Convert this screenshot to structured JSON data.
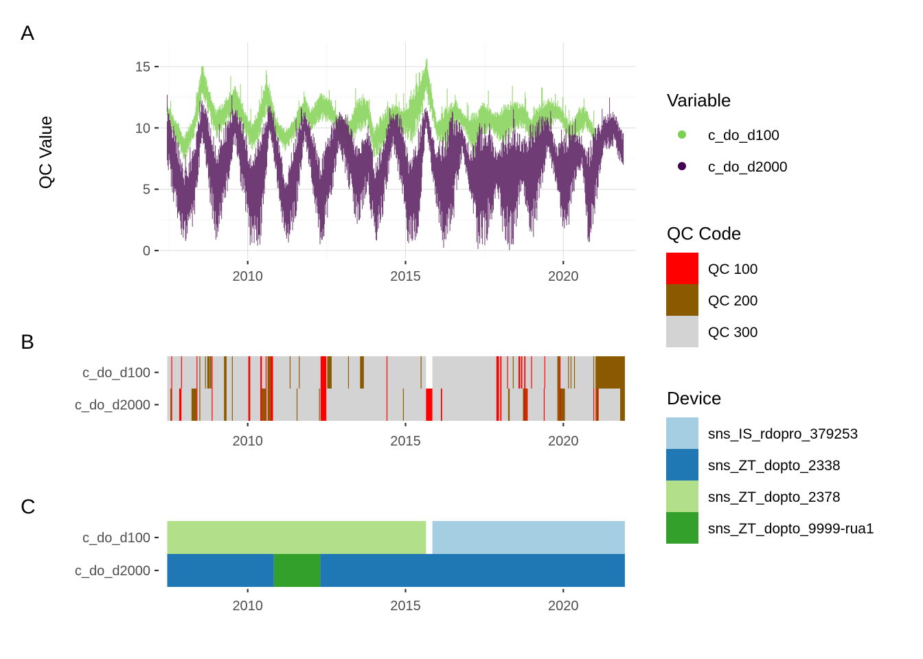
{
  "chart_data": [
    {
      "panel": "A",
      "type": "scatter",
      "title": "",
      "xlabel": "",
      "ylabel": "QC Value",
      "xlim": [
        2007.2,
        2022.3
      ],
      "ylim": [
        -0.3,
        16.2
      ],
      "x_ticks": [
        2010,
        2015,
        2020
      ],
      "x_tick_labels": [
        "2010",
        "2015",
        "2020"
      ],
      "y_ticks": [
        0,
        5,
        10,
        15
      ],
      "y_tick_labels": [
        "0",
        "5",
        "10",
        "15"
      ],
      "grid": true,
      "legend_placement": "right",
      "legend_title": "Variable",
      "series": [
        {
          "name": "c_do_d100",
          "color": "#95d86e",
          "note": "dense daily points; approximate seasonal upper/lower envelope",
          "x": [
            2007.45,
            2007.7,
            2008.0,
            2008.3,
            2008.55,
            2008.7,
            2009.0,
            2009.3,
            2009.6,
            2009.9,
            2010.15,
            2010.4,
            2010.6,
            2010.9,
            2011.2,
            2011.5,
            2011.8,
            2012.0,
            2012.3,
            2012.6,
            2012.9,
            2013.2,
            2013.5,
            2013.8,
            2014.0,
            2014.3,
            2014.6,
            2014.9,
            2015.2,
            2015.5,
            2015.65,
            2016.0,
            2016.3,
            2016.6,
            2016.9,
            2017.2,
            2017.5,
            2017.8,
            2018.1,
            2018.4,
            2018.7,
            2019.0,
            2019.3,
            2019.6,
            2019.9,
            2020.2,
            2020.5,
            2020.7,
            2021.0
          ],
          "y_high": [
            12.0,
            10.8,
            9.5,
            11.0,
            15.5,
            14.0,
            11.5,
            12.5,
            13.5,
            11.5,
            10.5,
            12.0,
            14.5,
            11.0,
            9.8,
            11.0,
            12.5,
            11.5,
            13.0,
            12.5,
            11.0,
            10.8,
            12.5,
            12.5,
            10.0,
            11.5,
            12.0,
            11.5,
            13.0,
            14.5,
            15.8,
            10.5,
            12.0,
            12.3,
            11.0,
            11.3,
            12.3,
            11.2,
            12.0,
            12.3,
            12.0,
            11.0,
            12.2,
            12.5,
            11.8,
            10.5,
            11.6,
            11.7,
            10.0
          ],
          "y_low": [
            10.8,
            9.0,
            7.2,
            9.0,
            12.0,
            11.5,
            9.0,
            10.0,
            11.0,
            9.5,
            7.8,
            9.5,
            11.0,
            9.0,
            8.0,
            9.2,
            10.5,
            9.8,
            10.5,
            10.5,
            9.2,
            8.0,
            9.5,
            10.0,
            7.5,
            8.0,
            10.0,
            9.5,
            8.5,
            10.5,
            12.5,
            9.0,
            8.0,
            10.5,
            9.5,
            7.5,
            9.5,
            9.5,
            8.0,
            9.5,
            10.0,
            8.5,
            9.0,
            10.0,
            10.5,
            8.5,
            9.0,
            10.0,
            8.5
          ]
        },
        {
          "name": "c_do_d2000",
          "color": "#440154",
          "rendered_color": "#68316f",
          "note": "dense daily points; approximate seasonal upper/lower envelope",
          "x": [
            2007.45,
            2007.7,
            2008.0,
            2008.3,
            2008.55,
            2008.8,
            2009.0,
            2009.3,
            2009.6,
            2009.9,
            2010.1,
            2010.4,
            2010.7,
            2010.95,
            2011.2,
            2011.5,
            2011.8,
            2012.05,
            2012.3,
            2012.6,
            2012.9,
            2013.2,
            2013.5,
            2013.8,
            2014.05,
            2014.3,
            2014.6,
            2014.9,
            2015.1,
            2015.4,
            2015.65,
            2015.95,
            2016.2,
            2016.5,
            2016.8,
            2017.05,
            2017.3,
            2017.6,
            2017.9,
            2018.15,
            2018.4,
            2018.7,
            2019.0,
            2019.2,
            2019.5,
            2019.8,
            2020.05,
            2020.3,
            2020.6,
            2020.8,
            2021.0,
            2021.3,
            2021.6,
            2021.9
          ],
          "y_high": [
            11.5,
            10.0,
            7.0,
            8.5,
            12.3,
            11.0,
            8.5,
            10.5,
            12.0,
            10.5,
            8.0,
            9.5,
            12.2,
            9.5,
            6.0,
            9.5,
            11.5,
            10.0,
            7.5,
            10.0,
            11.5,
            11.0,
            8.5,
            10.5,
            7.0,
            9.5,
            11.5,
            11.0,
            8.0,
            10.0,
            12.0,
            8.5,
            9.5,
            11.5,
            10.0,
            8.0,
            10.5,
            11.0,
            8.0,
            10.0,
            11.0,
            9.0,
            10.5,
            11.0,
            11.0,
            8.5,
            10.0,
            10.5,
            9.0,
            8.5,
            10.0,
            11.0,
            11.5,
            9.5
          ],
          "y_low": [
            7.0,
            3.0,
            0.0,
            2.0,
            9.0,
            4.0,
            0.0,
            3.5,
            9.0,
            3.0,
            0.0,
            0.5,
            9.5,
            5.0,
            0.0,
            2.0,
            9.0,
            5.0,
            0.0,
            3.0,
            8.5,
            5.0,
            1.5,
            5.0,
            0.0,
            3.0,
            8.5,
            4.0,
            0.0,
            1.0,
            10.0,
            4.0,
            0.0,
            2.0,
            8.0,
            4.0,
            0.0,
            0.5,
            5.0,
            0.0,
            0.0,
            5.0,
            0.0,
            3.0,
            8.0,
            5.0,
            0.0,
            4.0,
            7.0,
            0.0,
            3.0,
            8.0,
            8.5,
            6.5
          ]
        }
      ]
    },
    {
      "panel": "B",
      "type": "heatmap",
      "title": "",
      "xlabel": "",
      "ylabel": "",
      "xlim": [
        2007.2,
        2022.3
      ],
      "x_ticks": [
        2010,
        2015,
        2020
      ],
      "x_tick_labels": [
        "2010",
        "2015",
        "2020"
      ],
      "categories": [
        "c_do_d100",
        "c_do_d2000"
      ],
      "legend_placement": "right",
      "legend_title": "QC Code",
      "default_code": "QC 300",
      "colors": {
        "QC 100": "#ff0000",
        "QC 200": "#8b5a00",
        "QC 300": "#d3d3d3"
      },
      "data_start": 2007.45,
      "data_end": 2021.95,
      "rows": [
        {
          "name": "c_do_d100",
          "gaps": [
            [
              2015.65,
              2015.85
            ]
          ],
          "segments": [
            {
              "code": "QC 100",
              "start": 2007.58,
              "end": 2007.6
            },
            {
              "code": "QC 100",
              "start": 2007.89,
              "end": 2007.91
            },
            {
              "code": "QC 100",
              "start": 2008.38,
              "end": 2008.4
            },
            {
              "code": "QC 200",
              "start": 2008.47,
              "end": 2008.49
            },
            {
              "code": "QC 200",
              "start": 2008.65,
              "end": 2008.67
            },
            {
              "code": "QC 200",
              "start": 2008.72,
              "end": 2008.79
            },
            {
              "code": "QC 200",
              "start": 2008.8,
              "end": 2008.85
            },
            {
              "code": "QC 100",
              "start": 2008.86,
              "end": 2008.88
            },
            {
              "code": "QC 200",
              "start": 2009.25,
              "end": 2009.33
            },
            {
              "code": "QC 200",
              "start": 2009.5,
              "end": 2009.52
            },
            {
              "code": "QC 100",
              "start": 2010.02,
              "end": 2010.08
            },
            {
              "code": "QC 100",
              "start": 2010.4,
              "end": 2010.45
            },
            {
              "code": "QC 100",
              "start": 2010.57,
              "end": 2010.59
            },
            {
              "code": "QC 200",
              "start": 2010.63,
              "end": 2010.72
            },
            {
              "code": "QC 100",
              "start": 2010.72,
              "end": 2010.8
            },
            {
              "code": "QC 200",
              "start": 2011.33,
              "end": 2011.35
            },
            {
              "code": "QC 200",
              "start": 2011.62,
              "end": 2011.64
            },
            {
              "code": "QC 100",
              "start": 2012.31,
              "end": 2012.49
            },
            {
              "code": "QC 200",
              "start": 2012.52,
              "end": 2012.66
            },
            {
              "code": "QC 200",
              "start": 2013.18,
              "end": 2013.2
            },
            {
              "code": "QC 200",
              "start": 2013.56,
              "end": 2013.68
            },
            {
              "code": "QC 100",
              "start": 2014.4,
              "end": 2014.42
            },
            {
              "code": "QC 200",
              "start": 2015.48,
              "end": 2015.5
            },
            {
              "code": "QC 100",
              "start": 2017.88,
              "end": 2017.96
            },
            {
              "code": "QC 100",
              "start": 2018.0,
              "end": 2018.04
            },
            {
              "code": "QC 100",
              "start": 2018.22,
              "end": 2018.24
            },
            {
              "code": "QC 200",
              "start": 2018.4,
              "end": 2018.42
            },
            {
              "code": "QC 100",
              "start": 2018.58,
              "end": 2018.63
            },
            {
              "code": "QC 100",
              "start": 2018.66,
              "end": 2018.7
            },
            {
              "code": "QC 100",
              "start": 2018.76,
              "end": 2018.8
            },
            {
              "code": "QC 100",
              "start": 2018.98,
              "end": 2019.0
            },
            {
              "code": "QC 100",
              "start": 2019.4,
              "end": 2019.42
            },
            {
              "code": "QC 200",
              "start": 2019.81,
              "end": 2019.88
            },
            {
              "code": "QC 100",
              "start": 2019.88,
              "end": 2019.91
            },
            {
              "code": "QC 200",
              "start": 2020.15,
              "end": 2020.17
            },
            {
              "code": "QC 200",
              "start": 2020.23,
              "end": 2020.25
            },
            {
              "code": "QC 200",
              "start": 2020.34,
              "end": 2020.36
            },
            {
              "code": "QC 200",
              "start": 2020.95,
              "end": 2020.97
            },
            {
              "code": "QC 200",
              "start": 2021.02,
              "end": 2021.95
            }
          ]
        },
        {
          "name": "c_do_d2000",
          "gaps": [],
          "segments": [
            {
              "code": "QC 200",
              "start": 2007.55,
              "end": 2007.58
            },
            {
              "code": "QC 100",
              "start": 2007.58,
              "end": 2007.6
            },
            {
              "code": "QC 100",
              "start": 2007.83,
              "end": 2007.9
            },
            {
              "code": "QC 200",
              "start": 2008.22,
              "end": 2008.38
            },
            {
              "code": "QC 100",
              "start": 2008.38,
              "end": 2008.4
            },
            {
              "code": "QC 200",
              "start": 2008.47,
              "end": 2008.49
            },
            {
              "code": "QC 100",
              "start": 2008.86,
              "end": 2008.88
            },
            {
              "code": "QC 200",
              "start": 2009.25,
              "end": 2009.33
            },
            {
              "code": "QC 200",
              "start": 2009.5,
              "end": 2009.52
            },
            {
              "code": "QC 100",
              "start": 2010.02,
              "end": 2010.08
            },
            {
              "code": "QC 100",
              "start": 2010.4,
              "end": 2010.45
            },
            {
              "code": "QC 200",
              "start": 2010.45,
              "end": 2010.57
            },
            {
              "code": "QC 100",
              "start": 2010.57,
              "end": 2010.59
            },
            {
              "code": "QC 200",
              "start": 2010.63,
              "end": 2010.72
            },
            {
              "code": "QC 100",
              "start": 2010.72,
              "end": 2010.8
            },
            {
              "code": "QC 200",
              "start": 2011.55,
              "end": 2011.57
            },
            {
              "code": "QC 100",
              "start": 2012.31,
              "end": 2012.49
            },
            {
              "code": "QC 200",
              "start": 2012.26,
              "end": 2012.28
            },
            {
              "code": "QC 100",
              "start": 2014.4,
              "end": 2014.42
            },
            {
              "code": "QC 200",
              "start": 2014.92,
              "end": 2014.94
            },
            {
              "code": "QC 100",
              "start": 2015.65,
              "end": 2015.85
            },
            {
              "code": "QC 100",
              "start": 2016.12,
              "end": 2016.16
            },
            {
              "code": "QC 100",
              "start": 2017.88,
              "end": 2017.96
            },
            {
              "code": "QC 100",
              "start": 2018.0,
              "end": 2018.04
            },
            {
              "code": "QC 200",
              "start": 2018.25,
              "end": 2018.3
            },
            {
              "code": "QC 200",
              "start": 2018.72,
              "end": 2018.86
            },
            {
              "code": "QC 100",
              "start": 2018.76,
              "end": 2018.8
            },
            {
              "code": "QC 100",
              "start": 2018.84,
              "end": 2018.87
            },
            {
              "code": "QC 100",
              "start": 2019.38,
              "end": 2019.4
            },
            {
              "code": "QC 200",
              "start": 2019.81,
              "end": 2019.88
            },
            {
              "code": "QC 200",
              "start": 2019.88,
              "end": 2020.05
            },
            {
              "code": "QC 100",
              "start": 2019.88,
              "end": 2019.91
            },
            {
              "code": "QC 100",
              "start": 2020.95,
              "end": 2020.97
            },
            {
              "code": "QC 200",
              "start": 2021.02,
              "end": 2021.12
            },
            {
              "code": "QC 100",
              "start": 2021.07,
              "end": 2021.1
            },
            {
              "code": "QC 200",
              "start": 2021.8,
              "end": 2021.95
            }
          ]
        }
      ]
    },
    {
      "panel": "C",
      "type": "heatmap",
      "title": "",
      "xlabel": "",
      "ylabel": "",
      "xlim": [
        2007.2,
        2022.3
      ],
      "x_ticks": [
        2010,
        2015,
        2020
      ],
      "x_tick_labels": [
        "2010",
        "2015",
        "2020"
      ],
      "categories": [
        "c_do_d100",
        "c_do_d2000"
      ],
      "legend_placement": "right",
      "legend_title": "Device",
      "colors": {
        "sns_IS_rdopro_379253": "#a6cee3",
        "sns_ZT_dopto_2338": "#1f78b4",
        "sns_ZT_dopto_2378": "#b2df8a",
        "sns_ZT_dopto_9999-rua1": "#33a02c"
      },
      "rows": [
        {
          "name": "c_do_d100",
          "segments": [
            {
              "device": "sns_ZT_dopto_2378",
              "start": 2007.45,
              "end": 2015.65
            },
            {
              "device": "sns_IS_rdopro_379253",
              "start": 2015.85,
              "end": 2021.95
            }
          ]
        },
        {
          "name": "c_do_d2000",
          "segments": [
            {
              "device": "sns_ZT_dopto_2338",
              "start": 2007.45,
              "end": 2010.83
            },
            {
              "device": "sns_ZT_dopto_9999-rua1",
              "start": 2010.83,
              "end": 2012.3
            },
            {
              "device": "sns_ZT_dopto_2338",
              "start": 2012.3,
              "end": 2021.95
            }
          ]
        }
      ]
    }
  ],
  "panels": {
    "A": {
      "tag": "A",
      "ylabel": "QC Value"
    },
    "B": {
      "tag": "B"
    },
    "C": {
      "tag": "C"
    }
  },
  "legends": {
    "variable": {
      "title": "Variable",
      "items": [
        {
          "label": "c_do_d100",
          "color": "#7ad151"
        },
        {
          "label": "c_do_d2000",
          "color": "#440154"
        }
      ]
    },
    "qc_code": {
      "title": "QC Code",
      "items": [
        {
          "label": "QC 100",
          "color": "#ff0000"
        },
        {
          "label": "QC 200",
          "color": "#8b5a00"
        },
        {
          "label": "QC 300",
          "color": "#d3d3d3"
        }
      ]
    },
    "device": {
      "title": "Device",
      "items": [
        {
          "label": "sns_IS_rdopro_379253",
          "color": "#a6cee3"
        },
        {
          "label": "sns_ZT_dopto_2338",
          "color": "#1f78b4"
        },
        {
          "label": "sns_ZT_dopto_2378",
          "color": "#b2df8a"
        },
        {
          "label": "sns_ZT_dopto_9999-rua1",
          "color": "#33a02c"
        }
      ]
    }
  }
}
